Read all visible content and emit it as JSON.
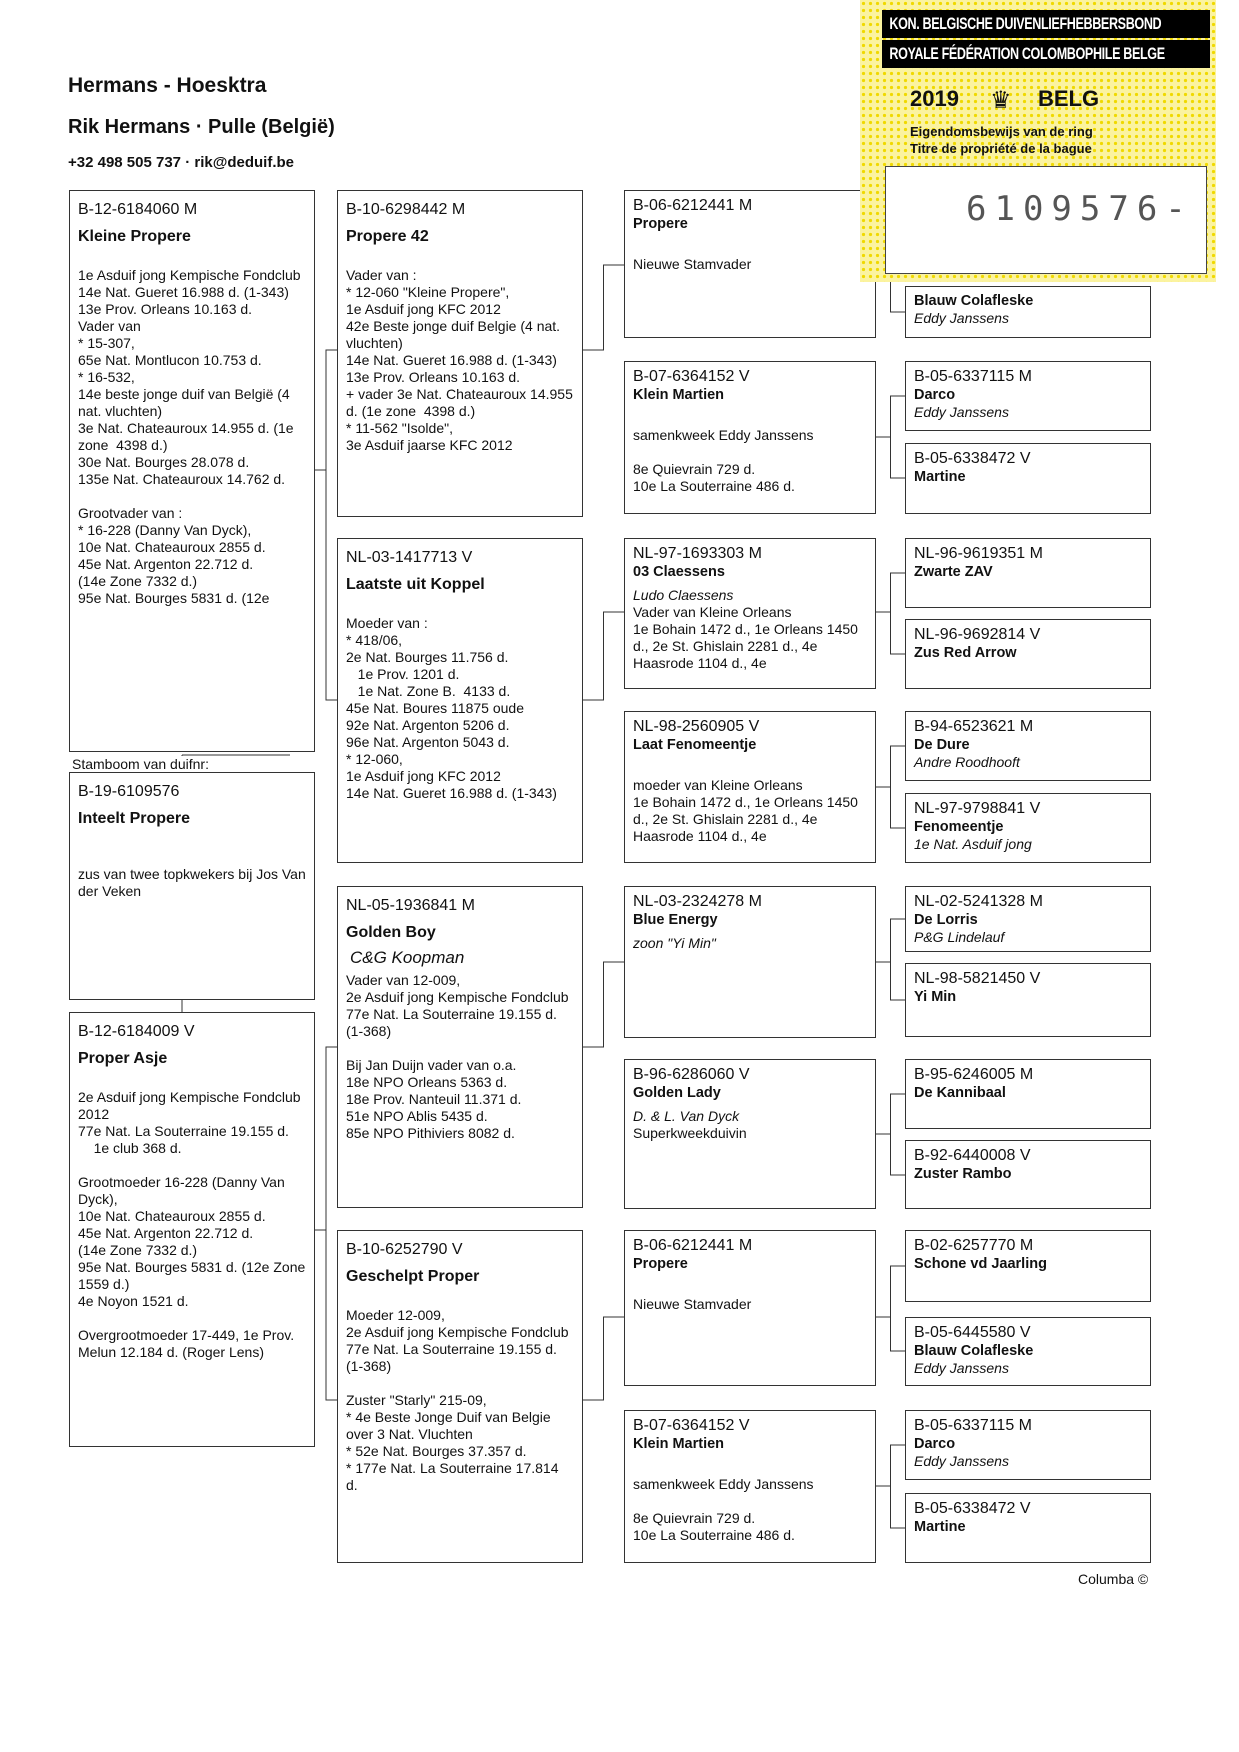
{
  "header": {
    "title": "Hermans - Hoesktra",
    "owner": "Rik Hermans  ·  Pulle (België)",
    "contact": "+32 498 505 737  ·  rik@deduif.be"
  },
  "stamp": {
    "line1": "KON. BELGISCHE DUIVENLIEFHEBBERSBOND",
    "line2": "ROYALE FÉDÉRATION COLOMBOPHILE BELGE",
    "year": "2019",
    "country": "BELG",
    "text1": "Eigendomsbewijs van de ring",
    "text2": "Titre de propriété de la bague",
    "number": "6109576-",
    "icon": "crown-icon",
    "bg_color": "#f5e64a"
  },
  "stamboom_label": "Stamboom van duifnr:",
  "footer": "Columba ©",
  "boxes": [
    {
      "ring": "B-19-6109576",
      "name": "Inteelt Propere",
      "lines": [
        "",
        "zus van twee topkwekers bij Jos Van der Veken"
      ]
    },
    {
      "ring": "B-12-6184060 M",
      "name": "Kleine Propere",
      "lines": [
        "1e Asduif jong Kempische Fondclub",
        "14e Nat. Gueret 16.988 d. (1-343)",
        "13e Prov. Orleans 10.163 d.",
        "Vader van",
        "* 15-307,",
        "65e Nat. Montlucon 10.753 d.",
        "* 16-532,",
        "14e beste jonge duif van België (4 nat. vluchten)",
        "3e Nat. Chateauroux 14.955 d. (1e zone  4398 d.)",
        "30e Nat. Bourges 28.078 d.",
        "135e Nat. Chateauroux 14.762 d.",
        "",
        "Grootvader van :",
        "* 16-228 (Danny Van Dyck),",
        "10e Nat. Chateauroux 2855 d.",
        "45e Nat. Argenton 22.712 d.",
        "(14e Zone 7332 d.)",
        "95e Nat. Bourges 5831 d. (12e"
      ]
    },
    {
      "ring": "B-12-6184009 V",
      "name": "Proper Asje",
      "lines": [
        "2e Asduif jong Kempische Fondclub 2012",
        "77e Nat. La Souterraine 19.155 d.",
        "    1e club 368 d.",
        "",
        "Grootmoeder 16-228 (Danny Van Dyck),",
        "10e Nat. Chateauroux 2855 d.",
        "45e Nat. Argenton 22.712 d.",
        "(14e Zone 7332 d.)",
        "95e Nat. Bourges 5831 d. (12e Zone 1559 d.)",
        "4e Noyon 1521 d.",
        "",
        "Overgrootmoeder 17-449, 1e Prov. Melun 12.184 d. (Roger Lens)"
      ]
    },
    {
      "ring": "B-10-6298442 M",
      "name": "Propere 42",
      "lines": [
        "Vader van :",
        "* 12-060 \"Kleine Propere\",",
        "1e Asduif jong KFC 2012",
        "42e Beste jonge duif Belgie (4 nat. vluchten)",
        "14e Nat. Gueret 16.988 d. (1-343)",
        "13e Prov. Orleans 10.163 d.",
        "+ vader 3e Nat. Chateauroux 14.955 d. (1e zone  4398 d.)",
        "* 11-562 \"Isolde\",",
        "3e Asduif jaarse KFC 2012"
      ]
    },
    {
      "ring": "NL-03-1417713 V",
      "name": "Laatste uit Koppel",
      "lines": [
        "Moeder van :",
        "* 418/06,",
        "2e Nat. Bourges 11.756 d.",
        "   1e Prov. 1201 d.",
        "   1e Nat. Zone B.  4133 d.",
        "45e Nat. Boures 11875 oude",
        "92e Nat. Argenton 5206 d.",
        "96e Nat. Argenton 5043 d.",
        "* 12-060,",
        "1e Asduif jong KFC 2012",
        "14e Nat. Gueret 16.988 d. (1-343)"
      ]
    },
    {
      "ring": "NL-05-1936841 M",
      "name": "Golden Boy",
      "owner": "C&G Koopman",
      "lines": [
        "Vader van 12-009,",
        "2e Asduif jong Kempische Fondclub",
        "77e Nat. La Souterraine 19.155 d. (1-368)",
        "",
        "Bij Jan Duijn vader van o.a.",
        "18e NPO Orleans 5363 d.",
        "18e Prov. Nanteuil 11.371 d.",
        "51e NPO Ablis 5435 d.",
        "85e NPO Pithiviers 8082 d."
      ]
    },
    {
      "ring": "B-10-6252790 V",
      "name": "Geschelpt Proper",
      "lines": [
        "Moeder 12-009,",
        "2e Asduif jong Kempische Fondclub",
        "77e Nat. La Souterraine 19.155 d. (1-368)",
        "",
        "Zuster \"Starly\" 215-09,",
        "* 4e Beste Jonge Duif van Belgie over 3 Nat. Vluchten",
        "* 52e Nat. Bourges 37.357 d.",
        "* 177e Nat. La Souterraine 17.814 d."
      ]
    },
    {
      "ring": "B-06-6212441 M",
      "name": "Propere",
      "lines": [
        "",
        "Nieuwe Stamvader"
      ]
    },
    {
      "ring": "B-07-6364152 V",
      "name": "Klein Martien",
      "lines": [
        "",
        "samenkweek Eddy Janssens",
        "",
        "8e Quievrain 729 d.",
        "10e La Souterraine 486 d."
      ]
    },
    {
      "ring": "NL-97-1693303 M",
      "name": "03 Claessens",
      "owner": "Ludo Claessens",
      "lines": [
        "Vader van Kleine Orleans",
        "1e Bohain 1472 d., 1e Orleans 1450 d., 2e St. Ghislain 2281 d., 4e Haasrode 1104 d., 4e"
      ]
    },
    {
      "ring": "NL-98-2560905 V",
      "name": "Laat Fenomeentje",
      "lines": [
        "",
        "moeder van Kleine Orleans",
        "1e Bohain 1472 d., 1e Orleans 1450 d., 2e St. Ghislain 2281 d., 4e Haasrode 1104 d., 4e"
      ]
    },
    {
      "ring": "NL-03-2324278 M",
      "name": "Blue Energy",
      "owner": "zoon \"Yi Min\"",
      "lines": []
    },
    {
      "ring": "B-96-6286060 V",
      "name": "Golden Lady",
      "owner": "D. & L. Van Dyck",
      "lines": [
        "Superkweekduivin"
      ]
    },
    {
      "ring": "B-06-6212441 M",
      "name": "Propere",
      "lines": [
        "",
        "Nieuwe Stamvader"
      ]
    },
    {
      "ring": "B-07-6364152 V",
      "name": "Klein Martien",
      "lines": [
        "",
        "samenkweek Eddy Janssens",
        "",
        "8e Quievrain 729 d.",
        "10e La Souterraine 486 d."
      ]
    },
    {
      "ring": "",
      "name": "Blauw Colafleske",
      "owner": "Eddy Janssens",
      "lines": []
    },
    {
      "ring": "B-05-6337115 M",
      "name": "Darco",
      "owner": "Eddy Janssens",
      "lines": []
    },
    {
      "ring": "B-05-6338472 V",
      "name": "Martine",
      "lines": []
    },
    {
      "ring": "NL-96-9619351 M",
      "name": "Zwarte ZAV",
      "lines": []
    },
    {
      "ring": "NL-96-9692814 V",
      "name": "Zus Red Arrow",
      "lines": []
    },
    {
      "ring": "B-94-6523621 M",
      "name": "De Dure",
      "owner": "Andre Roodhooft",
      "lines": []
    },
    {
      "ring": "NL-97-9798841 V",
      "name": "Fenomeentje",
      "owner": "1e Nat. Asduif jong",
      "lines": []
    },
    {
      "ring": "NL-02-5241328 M",
      "name": "De Lorris",
      "owner": "P&G Lindelauf",
      "lines": []
    },
    {
      "ring": "NL-98-5821450 V",
      "name": "Yi Min",
      "lines": []
    },
    {
      "ring": "B-95-6246005 M",
      "name": "De Kannibaal",
      "lines": []
    },
    {
      "ring": "B-92-6440008 V",
      "name": "Zuster Rambo",
      "lines": []
    },
    {
      "ring": "B-02-6257770 M",
      "name": "Schone vd Jaarling",
      "lines": []
    },
    {
      "ring": "B-05-6445580 V",
      "name": "Blauw Colafleske",
      "owner": "Eddy Janssens",
      "lines": []
    },
    {
      "ring": "B-05-6337115 M",
      "name": "Darco",
      "owner": "Eddy Janssens",
      "lines": []
    },
    {
      "ring": "B-05-6338472 V",
      "name": "Martine",
      "lines": []
    }
  ]
}
